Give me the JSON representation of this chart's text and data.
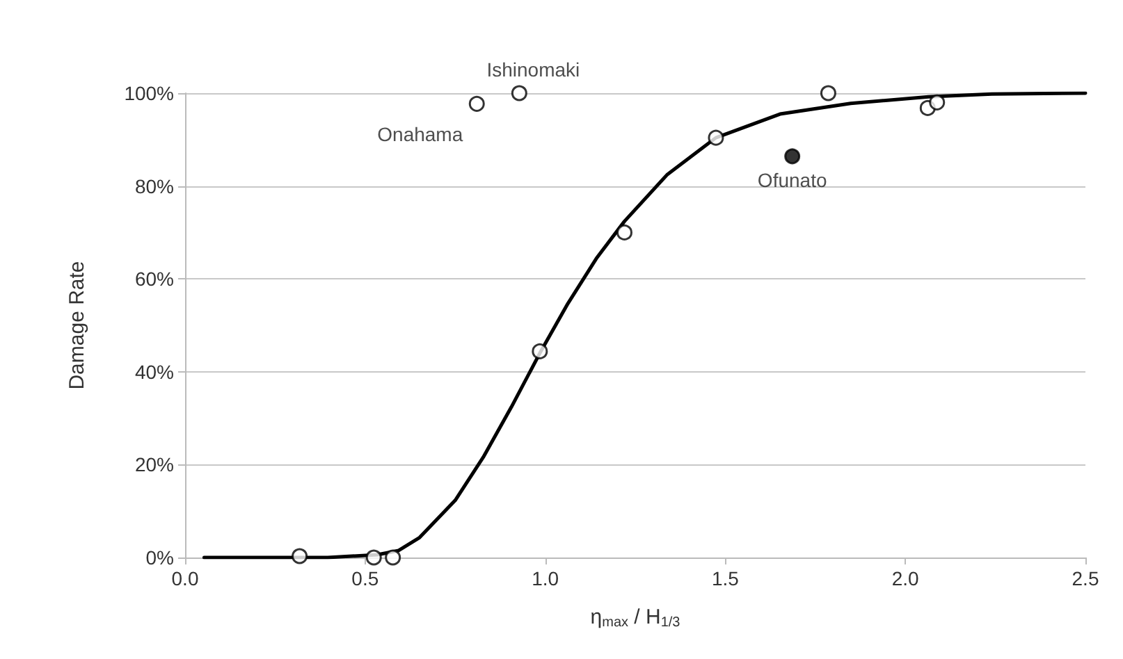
{
  "chart_data": {
    "type": "scatter",
    "xlabel": "η$_{max}$ / H$_{1/3}$",
    "ylabel": "Damage Rate",
    "xlim": [
      0,
      2.5
    ],
    "ylim": [
      0,
      100
    ],
    "xticks": [
      {
        "value": 0,
        "label": "0.0"
      },
      {
        "value": 0.5,
        "label": "0.5"
      },
      {
        "value": 1,
        "label": "1.0"
      },
      {
        "value": 1.5,
        "label": "1.5"
      },
      {
        "value": 2,
        "label": "2.0"
      },
      {
        "value": 2.5,
        "label": "2.5"
      }
    ],
    "yticks": [
      {
        "value": 0,
        "label": "0%"
      },
      {
        "value": 20,
        "label": "20%"
      },
      {
        "value": 40,
        "label": "40%"
      },
      {
        "value": 60,
        "label": "60%"
      },
      {
        "value": 80,
        "label": "80%"
      },
      {
        "value": 100,
        "label": "100%"
      }
    ],
    "grid": "y",
    "marker": "circle",
    "series": [
      {
        "type": "line",
        "color": "#000000",
        "marker": "none",
        "line_style": "solid",
        "x": [
          0.053,
          0.396,
          0.534,
          0.593,
          0.651,
          0.75,
          0.828,
          0.906,
          0.985,
          1.063,
          1.142,
          1.22,
          1.338,
          1.474,
          1.652,
          1.848,
          2.064,
          2.24,
          2.5
        ],
        "values": [
          0,
          0,
          0.6,
          1.5,
          4.3,
          12.3,
          21.6,
          32.4,
          44,
          54.7,
          64.4,
          72.4,
          82.4,
          90.4,
          95.5,
          97.8,
          99.2,
          99.8,
          100
        ]
      },
      {
        "color": "#ffffff",
        "x": [
          0.318,
          0.524,
          0.577,
          0.81,
          0.928,
          0.985,
          1.22,
          1.474,
          1.786,
          2.062,
          2.088
        ],
        "values": [
          0.3,
          0,
          0,
          97.7,
          100,
          44.4,
          70,
          90.4,
          100,
          96.8,
          98
        ]
      },
      {
        "color": "#000000",
        "x": [
          1.686
        ],
        "values": [
          86.4
        ]
      }
    ],
    "annotations": [
      {
        "text": "Ishinomaki",
        "x": 0.928,
        "y": 100
      },
      {
        "text": "Onahama",
        "x": 0.81,
        "y": 97.7
      },
      {
        "text": "Ofunato",
        "x": 1.686,
        "y": 86.4
      }
    ]
  }
}
